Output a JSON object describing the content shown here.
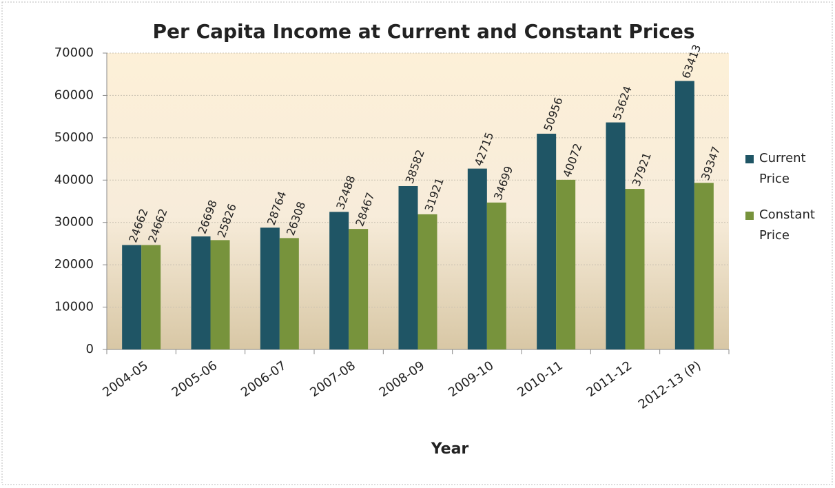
{
  "chart_data": {
    "type": "bar",
    "title": "Per Capita Income at Current and Constant Prices",
    "x_label": "Year",
    "categories": [
      "2004-05",
      "2005-06",
      "2006-07",
      "2007-08",
      "2008-09",
      "2009-10",
      "2010-11",
      "2011-12",
      "2012-13 (P)"
    ],
    "series": [
      {
        "name": "Current Price",
        "color": "#1f5565",
        "values": [
          24662,
          26698,
          28764,
          32488,
          38582,
          42715,
          50956,
          53624,
          63413
        ]
      },
      {
        "name": "Constant Price",
        "color": "#77933c",
        "values": [
          24662,
          25826,
          26308,
          28467,
          31921,
          34699,
          40072,
          37921,
          39347
        ]
      }
    ],
    "ylim": [
      0,
      70000
    ],
    "yticks": [
      0,
      10000,
      20000,
      30000,
      40000,
      50000,
      60000,
      70000
    ],
    "grid": true,
    "legend": "right"
  }
}
